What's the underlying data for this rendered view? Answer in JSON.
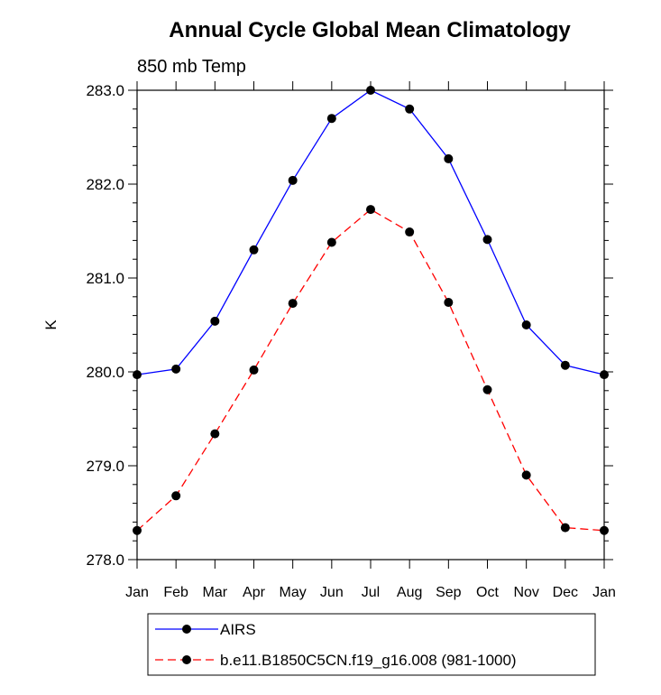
{
  "chart_data": {
    "type": "line",
    "title": "Annual Cycle Global Mean Climatology",
    "subtitle": "850 mb Temp",
    "xlabel": "",
    "ylabel": "K",
    "ylim": [
      278.0,
      283.0
    ],
    "yticks": [
      "278.0",
      "279.0",
      "280.0",
      "281.0",
      "282.0",
      "283.0"
    ],
    "categories": [
      "Jan",
      "Feb",
      "Mar",
      "Apr",
      "May",
      "Jun",
      "Jul",
      "Aug",
      "Sep",
      "Oct",
      "Nov",
      "Dec",
      "Jan"
    ],
    "grid": false,
    "legend_position": "bottom",
    "series": [
      {
        "name": "AIRS",
        "color": "#0000ff",
        "dash": "solid",
        "values": [
          279.97,
          280.03,
          280.54,
          281.3,
          282.04,
          282.7,
          283.0,
          282.8,
          282.27,
          281.41,
          280.5,
          280.07,
          279.97
        ]
      },
      {
        "name": "b.e11.B1850C5CN.f19_g16.008 (981-1000)",
        "color": "#ff0000",
        "dash": "dashed",
        "values": [
          278.31,
          278.68,
          279.34,
          280.02,
          280.73,
          281.38,
          281.73,
          281.49,
          280.74,
          279.81,
          278.9,
          278.34,
          278.31
        ]
      }
    ]
  }
}
